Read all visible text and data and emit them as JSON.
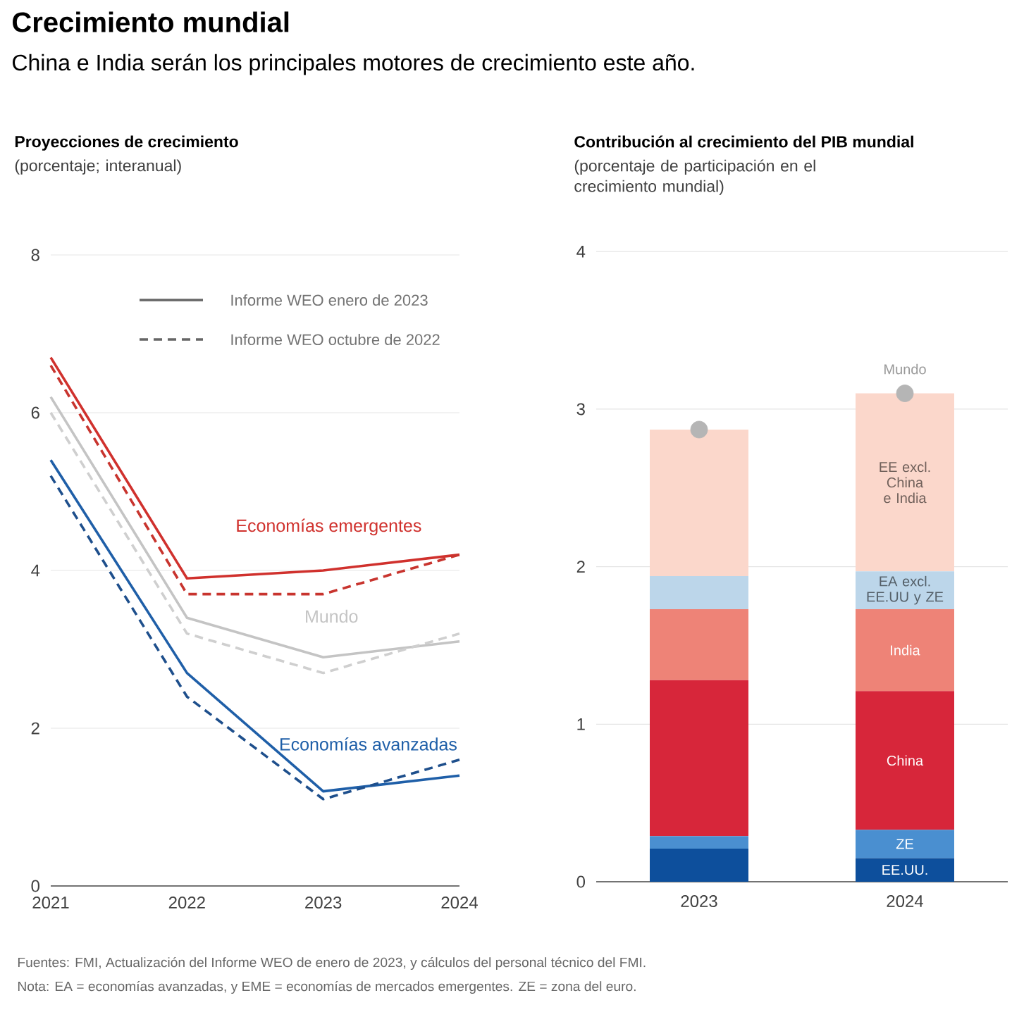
{
  "chart_data": [
    {
      "type": "line",
      "title": "Proyecciones de crecimiento",
      "ylabel": "(porcentaje; interanual)",
      "annotations": [
        "Crecimiento mundial",
        "China e India serán los principales motores de crecimiento este año.",
        "Informe WEO enero de 2023",
        "Informe WEO octubre de 2022"
      ],
      "x": [
        2021,
        2022,
        2023,
        2024
      ],
      "xlim": [
        2021,
        2024
      ],
      "xticks": [
        2021,
        2022,
        2023,
        2024
      ],
      "ylim": [
        0,
        8
      ],
      "yticks": [
        0,
        2,
        4,
        6,
        8
      ],
      "grid": "y",
      "series": [
        {
          "name": "Economías emergentes",
          "color": "#d0312d",
          "line_style": "solid",
          "values": [
            6.7,
            3.9,
            4.0,
            4.2
          ]
        },
        {
          "color": "#c8342e",
          "line_style": "dashed",
          "values": [
            6.6,
            3.7,
            3.7,
            4.2
          ]
        },
        {
          "name": "Mundo",
          "color": "#c4c4c4",
          "line_style": "solid",
          "values": [
            6.2,
            3.4,
            2.9,
            3.1
          ]
        },
        {
          "color": "#cfcfcf",
          "line_style": "dashed",
          "values": [
            6.0,
            3.2,
            2.7,
            3.2
          ]
        },
        {
          "name": "Economías avanzadas",
          "color": "#1f5fa8",
          "line_style": "solid",
          "values": [
            5.4,
            2.7,
            1.2,
            1.4
          ]
        },
        {
          "color": "#1e4f8c",
          "line_style": "dashed",
          "values": [
            5.2,
            2.4,
            1.1,
            1.6
          ]
        }
      ]
    },
    {
      "type": "bar",
      "stacked": true,
      "title": "Contribución al crecimiento del PIB mundial",
      "ylabel": "(porcentaje de participación en el crecimiento mundial)",
      "annotations": [
        "Fuentes: FMI, Actualización del Informe WEO de enero de 2023, y cálculos del personal técnico del FMI.",
        "Nota: EA = economías avanzadas, y EME = economías de mercados emergentes.  ZE = zona del euro."
      ],
      "categories": [
        "2023",
        "2024"
      ],
      "ylim": [
        0,
        4
      ],
      "yticks": [
        0,
        1,
        2,
        3,
        4
      ],
      "grid": "y",
      "series": [
        {
          "name": "EE.UU.",
          "color": "#0d4f9c",
          "values": [
            0.21,
            0.15
          ]
        },
        {
          "name": "ZE",
          "color": "#4a8fd0",
          "values": [
            0.08,
            0.18
          ]
        },
        {
          "name": "China",
          "color": "#d7263a",
          "values": [
            0.99,
            0.88
          ]
        },
        {
          "name": "India",
          "color": "#ee8377",
          "values": [
            0.45,
            0.52
          ]
        },
        {
          "name": "EA excl. EE.UU y ZE",
          "color": "#bcd6ea",
          "values": [
            0.21,
            0.24
          ]
        },
        {
          "name": "EE excl. China e India",
          "color": "#fbd7cb",
          "values": [
            0.93,
            1.13
          ]
        },
        {
          "name": "Mundo",
          "type": "scatter",
          "color": "#b5b5b5",
          "values": [
            2.87,
            3.1
          ]
        }
      ]
    }
  ]
}
